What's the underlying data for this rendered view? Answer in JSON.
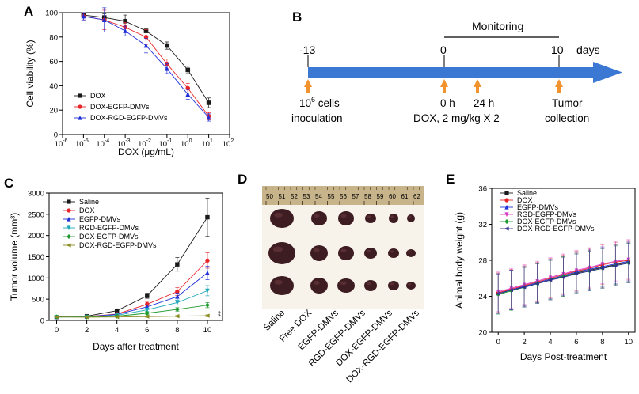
{
  "chart_data": [
    {
      "panel": "A",
      "type": "line",
      "xscale": "log",
      "xlabel": "DOX (μg/mL)",
      "ylabel": "Cell viability (%)",
      "ylim": [
        0,
        100
      ],
      "xlim_exp": [
        -6,
        2
      ],
      "xticks_exp": [
        -6,
        -5,
        -4,
        -3,
        -2,
        -1,
        0,
        1,
        2
      ],
      "yticks": [
        0,
        20,
        40,
        60,
        80,
        100
      ],
      "x_exp": [
        -5,
        -4,
        -3,
        -2,
        -1,
        0,
        1
      ],
      "series": [
        {
          "name": "DOX",
          "color": "#1a1a1a",
          "marker": "square",
          "values": [
            98,
            96,
            93,
            85,
            73,
            53,
            26
          ],
          "err": [
            2,
            3,
            5,
            5,
            3,
            3,
            4
          ]
        },
        {
          "name": "DOX-EGFP-DMVs",
          "color": "#e8232a",
          "marker": "circle",
          "values": [
            97,
            94,
            88,
            80,
            58,
            38,
            15
          ],
          "err": [
            3,
            8,
            4,
            6,
            4,
            4,
            3
          ]
        },
        {
          "name": "DOX-RGD-EGFP-DMVs",
          "color": "#2030d8",
          "marker": "triangle",
          "values": [
            97,
            94,
            85,
            73,
            54,
            33,
            14
          ],
          "err": [
            3,
            10,
            4,
            6,
            4,
            4,
            3
          ]
        }
      ]
    },
    {
      "panel": "C",
      "type": "line",
      "xlabel": "Days after treatment",
      "ylabel": "Tumor volume (mm³)",
      "ylim": [
        0,
        3000
      ],
      "xlim": [
        -0.5,
        11
      ],
      "xticks": [
        0,
        2,
        4,
        6,
        8,
        10
      ],
      "yticks": [
        0,
        500,
        1000,
        1500,
        2000,
        2500,
        3000
      ],
      "x": [
        0,
        2,
        4,
        6,
        8,
        10
      ],
      "series": [
        {
          "name": "Saline",
          "color": "#1a1a1a",
          "marker": "square",
          "values": [
            80,
            100,
            230,
            580,
            1320,
            2430
          ],
          "err": [
            10,
            15,
            30,
            60,
            160,
            450
          ]
        },
        {
          "name": "DOX",
          "color": "#e8232a",
          "marker": "circle",
          "values": [
            80,
            90,
            150,
            380,
            680,
            1410
          ],
          "err": [
            10,
            10,
            20,
            50,
            90,
            180
          ]
        },
        {
          "name": "EGFP-DMVs",
          "color": "#2030d8",
          "marker": "triangle",
          "values": [
            80,
            90,
            140,
            320,
            560,
            1120
          ],
          "err": [
            10,
            10,
            20,
            40,
            80,
            160
          ]
        },
        {
          "name": "RGD-EGFP-DMVs",
          "color": "#1fa8b8",
          "marker": "triangle-down",
          "values": [
            80,
            85,
            120,
            250,
            420,
            700
          ],
          "err": [
            10,
            10,
            20,
            35,
            60,
            120
          ]
        },
        {
          "name": "DOX-EGFP-DMVs",
          "color": "#1e9a2e",
          "marker": "diamond",
          "values": [
            80,
            80,
            100,
            170,
            260,
            360
          ],
          "err": [
            10,
            10,
            15,
            25,
            40,
            60
          ]
        },
        {
          "name": "DOX-RGD-EGFP-DMVs",
          "color": "#8a8a20",
          "marker": "triangle-left",
          "values": [
            80,
            75,
            80,
            90,
            100,
            110
          ],
          "err": [
            10,
            10,
            10,
            15,
            15,
            20
          ]
        }
      ],
      "annotation": "**"
    },
    {
      "panel": "E",
      "type": "line",
      "xlabel": "Days Post-treatment",
      "ylabel": "Animal body weight (g)",
      "ylim": [
        20,
        36
      ],
      "xlim": [
        -0.5,
        10.5
      ],
      "xticks": [
        0,
        2,
        4,
        6,
        8,
        10
      ],
      "yticks": [
        20,
        24,
        28,
        32,
        36
      ],
      "x": [
        0,
        1,
        2,
        3,
        4,
        5,
        6,
        7,
        8,
        9,
        10
      ],
      "series": [
        {
          "name": "Saline",
          "color": "#1a1a1a",
          "marker": "square",
          "values": [
            24.3,
            24.7,
            25.1,
            25.5,
            25.9,
            26.2,
            26.6,
            26.9,
            27.2,
            27.5,
            27.8
          ]
        },
        {
          "name": "DOX",
          "color": "#e8232a",
          "marker": "circle",
          "values": [
            24.4,
            24.8,
            25.2,
            25.6,
            26.0,
            26.4,
            26.8,
            27.1,
            27.5,
            27.8,
            28.0
          ]
        },
        {
          "name": "EGFP-DMVs",
          "color": "#2030d8",
          "marker": "triangle",
          "values": [
            24.3,
            24.7,
            25.1,
            25.5,
            25.9,
            26.3,
            26.7,
            27.0,
            27.3,
            27.6,
            27.9
          ]
        },
        {
          "name": "RGD-EGFP-DMVs",
          "color": "#d838c8",
          "marker": "triangle-down",
          "values": [
            24.5,
            24.9,
            25.3,
            25.7,
            26.1,
            26.5,
            26.9,
            27.2,
            27.6,
            27.9,
            28.1
          ]
        },
        {
          "name": "DOX-EGFP-DMVs",
          "color": "#1e9a2e",
          "marker": "diamond",
          "values": [
            24.2,
            24.6,
            25.0,
            25.4,
            25.8,
            26.2,
            26.5,
            26.8,
            27.1,
            27.4,
            27.7
          ]
        },
        {
          "name": "DOX-RGD-EGFP-DMVs",
          "color": "#303090",
          "marker": "triangle-left",
          "values": [
            24.3,
            24.7,
            25.0,
            25.4,
            25.8,
            26.1,
            26.5,
            26.8,
            27.1,
            27.4,
            27.7
          ]
        }
      ],
      "err": 2.2
    }
  ],
  "panel_labels": {
    "a": "A",
    "b": "B",
    "c": "C",
    "d": "D",
    "e": "E"
  },
  "timeline": {
    "monitoring": "Monitoring",
    "start": "-13",
    "zero": "0",
    "end": "10",
    "days": "days",
    "cells_base": "10",
    "cells_exp": "6",
    "cells_rest": " cells",
    "inoculation": "inoculation",
    "h0": "0 h",
    "h24": "24 h",
    "dose": "DOX, 2 mg/kg X 2",
    "tumor": "Tumor",
    "collection": "collection",
    "arrow_color": "#3a78d4",
    "marker_color": "#f0922e"
  },
  "photo": {
    "ruler_numbers": [
      "50",
      "51",
      "52",
      "53",
      "54",
      "55",
      "56",
      "57",
      "58",
      "59",
      "60",
      "61",
      "62"
    ],
    "labels": [
      "Saline",
      "Free DOX",
      "EGFP-DMVs",
      "RGD-EGFP-DMVs",
      "DOX-EGFP-DMVs",
      "DOX-RGD-EGFP-DMVs"
    ]
  }
}
